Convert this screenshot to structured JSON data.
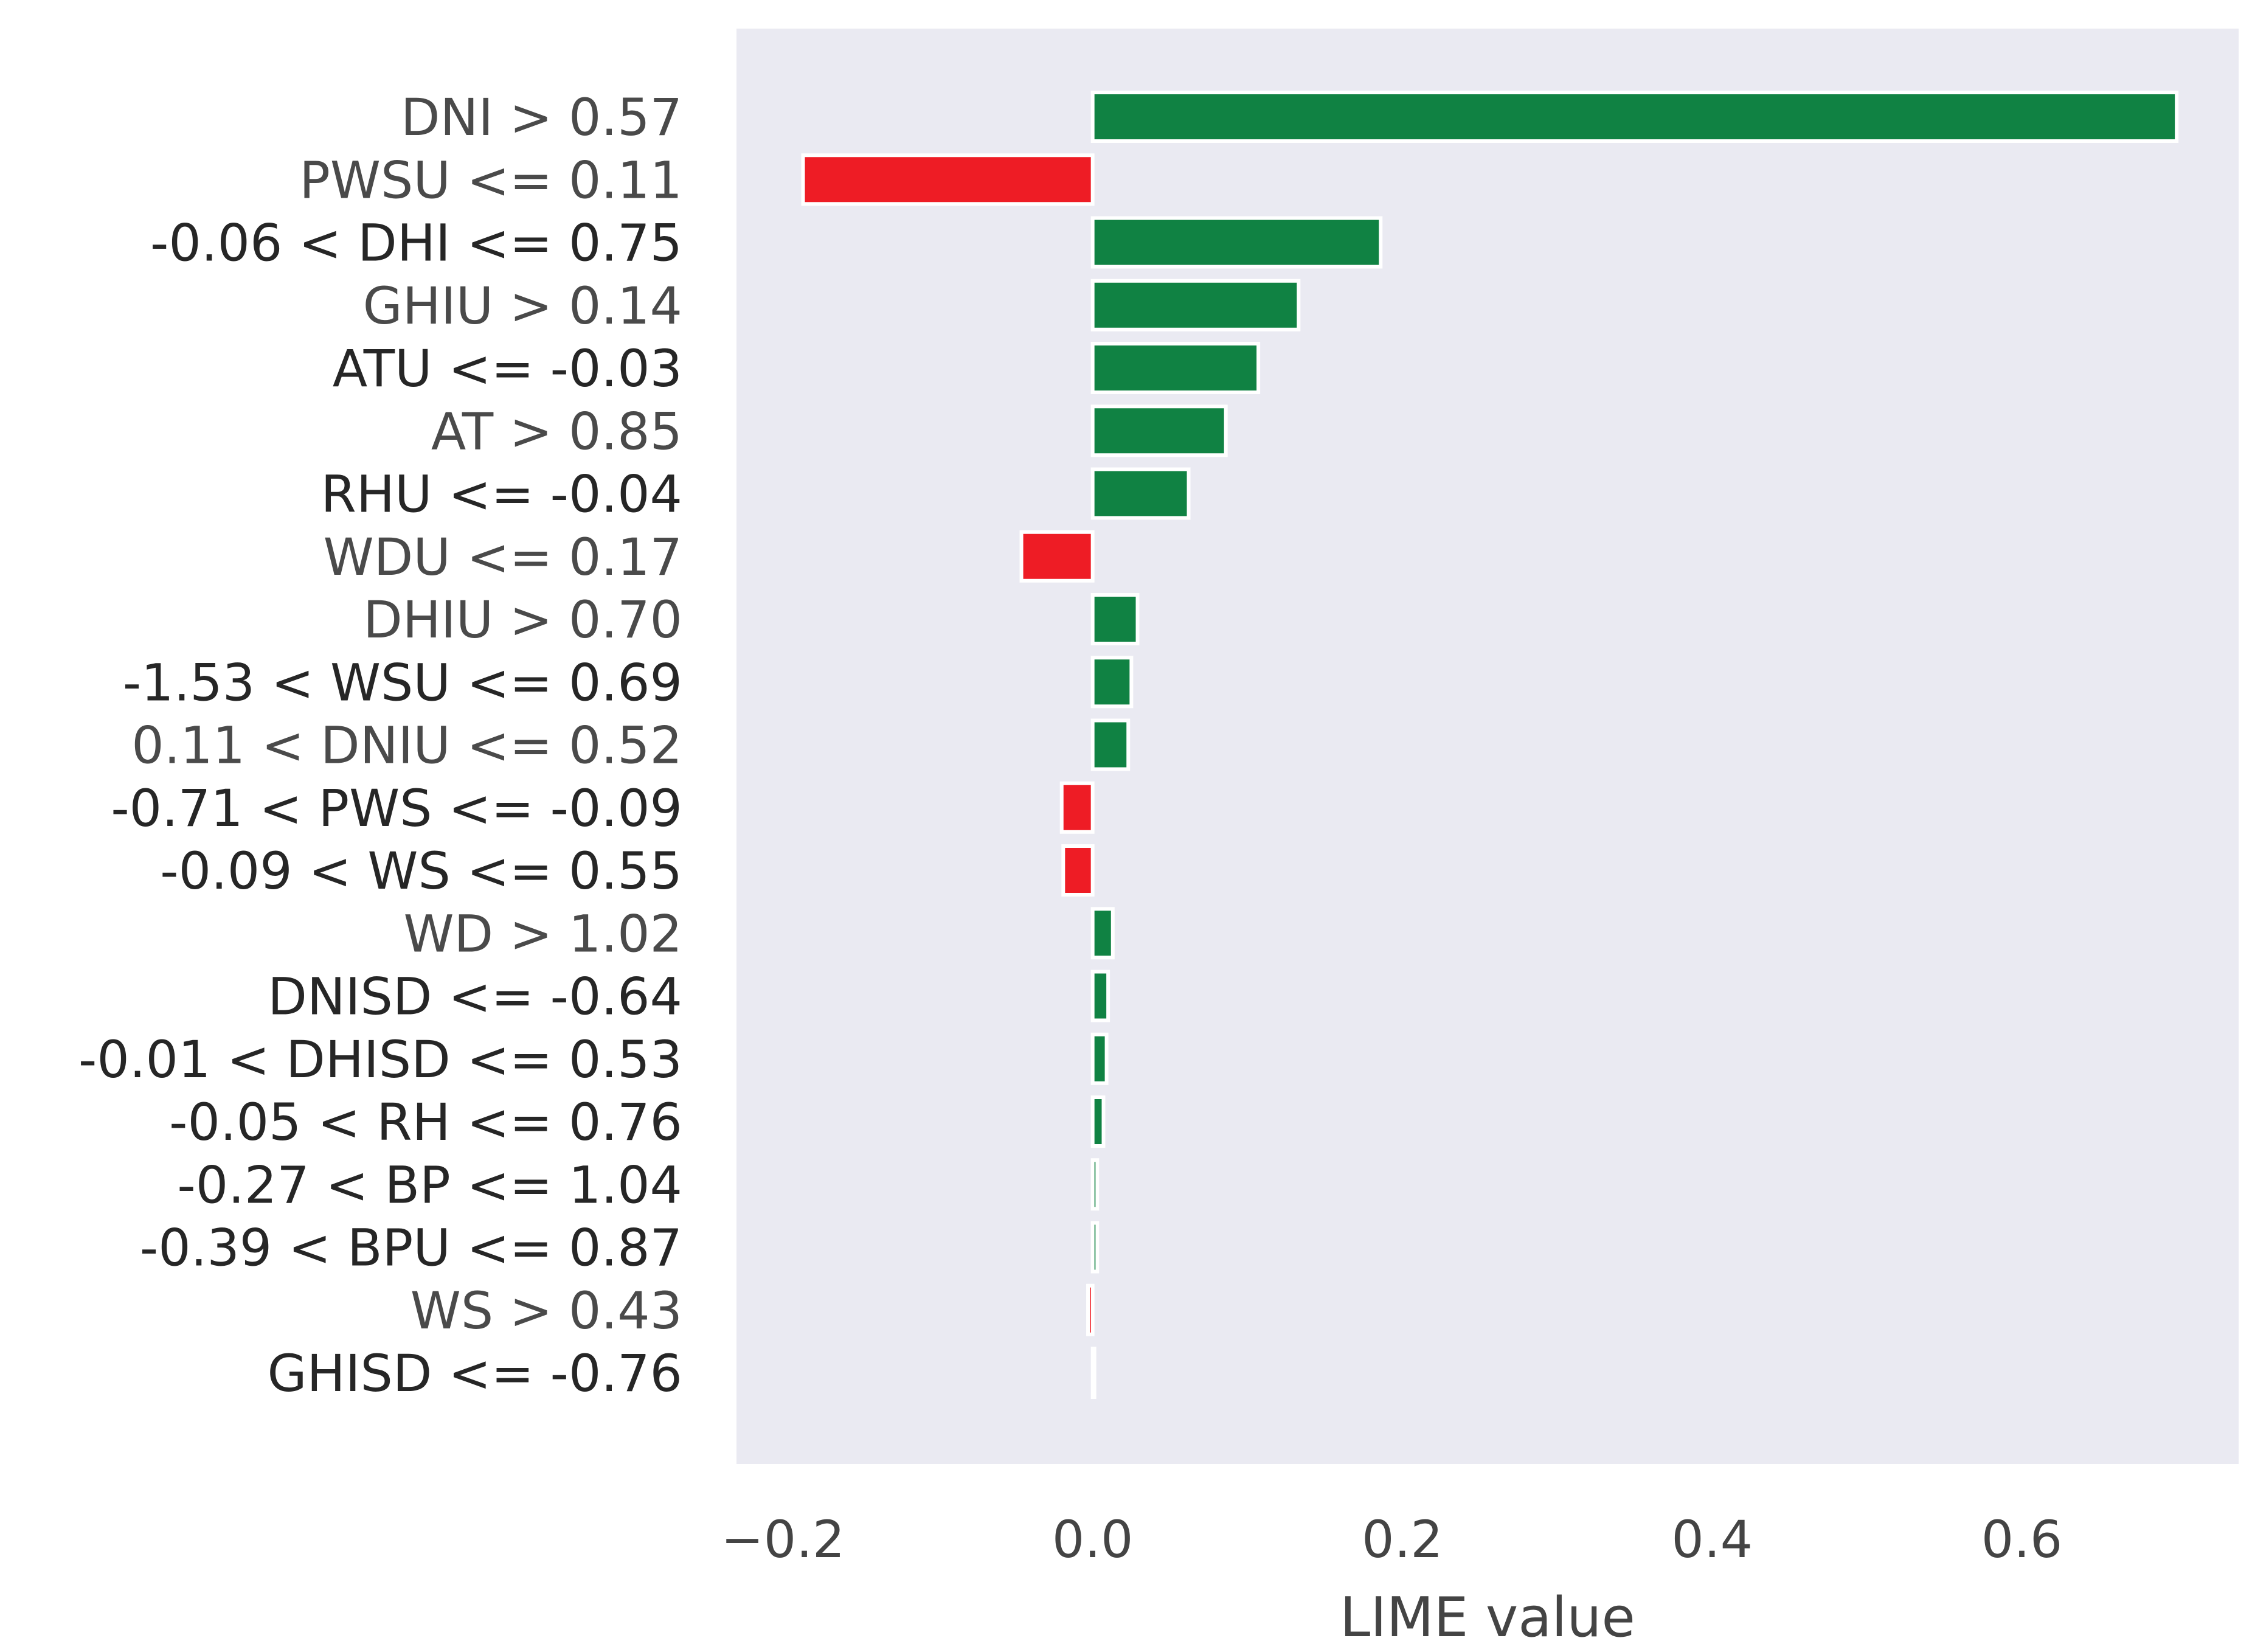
{
  "chart_data": {
    "type": "bar",
    "orientation": "horizontal",
    "title": "",
    "xlabel": "LIME value",
    "ylabel": "",
    "xlim": [
      -0.23,
      0.74
    ],
    "xticks": [
      -0.2,
      0.0,
      0.2,
      0.4,
      0.6
    ],
    "xtick_labels": [
      "−0.2",
      "0.0",
      "0.2",
      "0.4",
      "0.6"
    ],
    "grid": false,
    "colors": {
      "positive": "#108243",
      "negative": "#ee1c25",
      "background": "#eaeaf2",
      "bar_edge": "#ffffff",
      "label_dark": "#262626",
      "label_grey": "#4a4a4a"
    },
    "categories": [
      "DNI > 0.57",
      "PWSU <= 0.11",
      "-0.06 < DHI <= 0.75",
      "GHIU > 0.14",
      "ATU <= -0.03",
      "AT > 0.85",
      "RHU <= -0.04",
      "WDU <= 0.17",
      "DHIU > 0.70",
      "-1.53 < WSU <= 0.69",
      "0.11 < DNIU <= 0.52",
      "-0.71 < PWS <= -0.09",
      "-0.09 < WS <= 0.55",
      "WD > 1.02",
      "DNISD <= -0.64",
      "-0.01 < DHISD <= 0.53",
      "-0.05 < RH <= 0.76",
      "-0.27 < BP <= 1.04",
      "-0.39 < BPU <= 0.87",
      "WS > 0.43",
      "GHISD <= -0.76"
    ],
    "values": [
      0.7,
      -0.187,
      0.186,
      0.133,
      0.107,
      0.086,
      0.062,
      -0.046,
      0.029,
      0.025,
      0.023,
      -0.02,
      -0.019,
      0.013,
      0.01,
      0.009,
      0.007,
      0.003,
      0.003,
      -0.003,
      0.001
    ],
    "label_tones": [
      "grey",
      "grey",
      "dark",
      "grey",
      "dark",
      "grey",
      "dark",
      "grey",
      "grey",
      "dark",
      "grey",
      "dark",
      "dark",
      "grey",
      "dark",
      "dark",
      "dark",
      "dark",
      "dark",
      "grey",
      "dark"
    ]
  }
}
